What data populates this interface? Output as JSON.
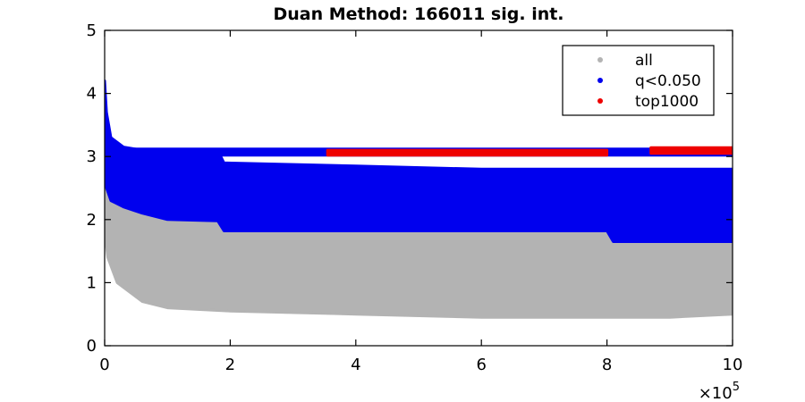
{
  "chart_data": {
    "type": "scatter",
    "title": "Duan Method: 166011 sig. int.",
    "xlabel": "",
    "ylabel": "",
    "xlim": [
      0,
      1000000
    ],
    "ylim": [
      0,
      5
    ],
    "x_ticks": [
      0,
      200000,
      400000,
      600000,
      800000,
      1000000
    ],
    "x_tick_labels": [
      "0",
      "2",
      "4",
      "6",
      "8",
      "10"
    ],
    "x_exponent": {
      "base": "×10",
      "power": "5"
    },
    "y_ticks": [
      0,
      1,
      2,
      3,
      4,
      5
    ],
    "y_tick_labels": [
      "0",
      "1",
      "2",
      "3",
      "4",
      "5"
    ],
    "grid": false,
    "legend_position": "top-right",
    "series": [
      {
        "name": "all",
        "color": "#b3b3b3",
        "bands": [
          {
            "x": [
              0,
              5000,
              20000,
              60000,
              100000,
              200000,
              400000,
              600000,
              800000,
              900000,
              1000000
            ],
            "y_low": [
              1.8,
              1.4,
              1.0,
              0.7,
              0.6,
              0.55,
              0.5,
              0.45,
              0.45,
              0.45,
              0.5
            ],
            "y_high": [
              3.8,
              3.0,
              2.5,
              2.3,
              2.1,
              2.0,
              2.0,
              2.0,
              2.0,
              2.0,
              2.0
            ]
          }
        ]
      },
      {
        "name": "q<0.050",
        "color": "#0000ee",
        "bands": [
          {
            "x": [
              0,
              3000,
              10000,
              30000,
              60000,
              100000,
              180000,
              190000,
              400000,
              600000,
              800000,
              810000,
              1000000
            ],
            "y_low": [
              3.0,
              2.5,
              2.3,
              2.2,
              2.1,
              2.0,
              1.98,
              1.82,
              1.82,
              1.82,
              1.82,
              1.65,
              1.65
            ],
            "y_high": [
              4.2,
              3.7,
              3.3,
              3.15,
              3.1,
              3.1,
              3.1,
              2.9,
              2.85,
              2.8,
              2.8,
              2.8,
              2.8
            ]
          },
          {
            "x": [
              0,
              1000000
            ],
            "y_low": [
              3.02,
              3.02
            ],
            "y_high": [
              3.12,
              3.12
            ]
          }
        ]
      },
      {
        "name": "top1000",
        "color": "#ee0000",
        "bands": [
          {
            "x": [
              355000,
              800000
            ],
            "y_low": [
              3.02,
              3.02
            ],
            "y_high": [
              3.1,
              3.1
            ]
          },
          {
            "x": [
              870000,
              1000000
            ],
            "y_low": [
              3.05,
              3.05
            ],
            "y_high": [
              3.14,
              3.14
            ]
          }
        ]
      }
    ]
  }
}
